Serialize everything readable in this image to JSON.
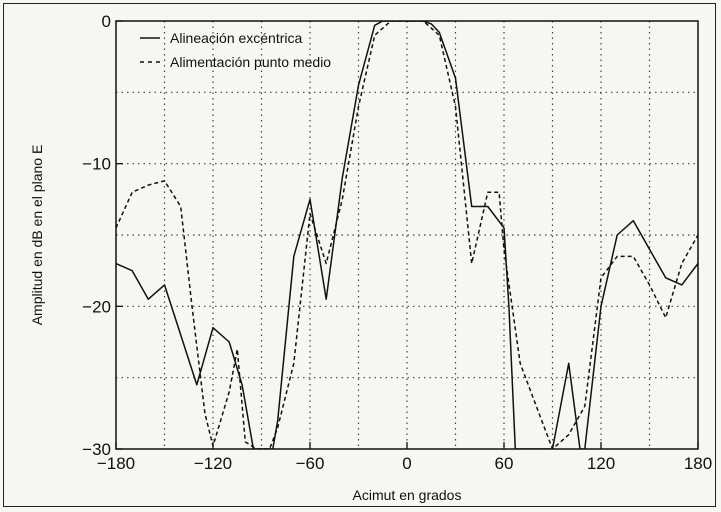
{
  "chart_data": {
    "type": "line",
    "xlabel": "Acimut en grados",
    "ylabel": "Amplitud en dB en el plano E",
    "xlim": [
      -180,
      180
    ],
    "ylim": [
      -30,
      0
    ],
    "x_ticks": [
      -180,
      -120,
      -60,
      0,
      60,
      120,
      180
    ],
    "x_tick_labels": [
      "−180",
      "−120",
      "−60",
      "0",
      "60",
      "120",
      "180"
    ],
    "y_ticks": [
      0,
      -10,
      -20,
      -30
    ],
    "y_tick_labels": [
      "0",
      "−10",
      "−20",
      "−30"
    ],
    "grid": true,
    "grid_x": [
      -150,
      -120,
      -90,
      -60,
      -30,
      0,
      30,
      60,
      90,
      120,
      150
    ],
    "grid_y": [
      -5,
      -10,
      -15,
      -20,
      -25
    ],
    "legend_position": "top-left",
    "series": [
      {
        "name": "Alineación excéntrica",
        "style": "solid",
        "color": "#111111",
        "x": [
          -180,
          -170,
          -160,
          -150,
          -140,
          -130,
          -125,
          -120,
          -110,
          -102,
          -95,
          -93,
          -83,
          -80,
          -70,
          -60,
          -50,
          -40,
          -30,
          -20,
          -15,
          -10,
          0,
          10,
          15,
          20,
          30,
          40,
          50,
          60,
          63,
          67,
          80,
          90,
          100,
          107,
          110,
          120,
          130,
          140,
          150,
          160,
          170,
          180
        ],
        "y": [
          -17.0,
          -17.5,
          -19.5,
          -18.5,
          -22.0,
          -25.5,
          -23.5,
          -21.5,
          -22.5,
          -25.5,
          -30,
          -30,
          -30,
          -28.0,
          -16.5,
          -12.5,
          -19.5,
          -11.0,
          -4.5,
          -0.3,
          0,
          0,
          0,
          0,
          -0.2,
          -0.8,
          -4.0,
          -13.0,
          -13.0,
          -14.5,
          -20,
          -30,
          -30,
          -30,
          -24.0,
          -30,
          -30,
          -20.0,
          -15.0,
          -14.0,
          -16.0,
          -18.0,
          -18.5,
          -17.0
        ]
      },
      {
        "name": "Alimentación punto medio",
        "style": "dashed",
        "color": "#111111",
        "x": [
          -180,
          -170,
          -160,
          -150,
          -140,
          -133,
          -125,
          -120,
          -110,
          -105,
          -100,
          -93,
          -85,
          -80,
          -70,
          -60,
          -50,
          -40,
          -30,
          -20,
          -10,
          0,
          10,
          20,
          30,
          35,
          40,
          50,
          57,
          60,
          70,
          80,
          90,
          100,
          110,
          120,
          130,
          140,
          150,
          160,
          170,
          180
        ],
        "y": [
          -14.5,
          -12.0,
          -11.5,
          -11.2,
          -13.0,
          -20.0,
          -27.5,
          -29.8,
          -26.0,
          -23.0,
          -29.5,
          -30,
          -30,
          -28.5,
          -24.0,
          -13.5,
          -17.0,
          -12.5,
          -6.0,
          -1.0,
          0,
          0,
          0,
          -1.0,
          -6.0,
          -11.5,
          -17.0,
          -12.0,
          -12.0,
          -16.0,
          -24.0,
          -27.0,
          -30,
          -29.0,
          -27.0,
          -18.0,
          -16.5,
          -16.5,
          -18.5,
          -20.8,
          -17.0,
          -15.0
        ]
      }
    ]
  }
}
